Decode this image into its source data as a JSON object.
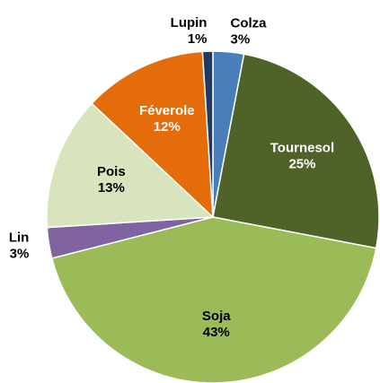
{
  "chart_data": {
    "type": "pie",
    "categories": [
      "Colza",
      "Tournesol",
      "Soja",
      "Lin",
      "Pois",
      "Féverole",
      "Lupin"
    ],
    "values": [
      3,
      25,
      43,
      3,
      13,
      12,
      1
    ],
    "value_labels": [
      "3%",
      "25%",
      "43%",
      "3%",
      "13%",
      "12%",
      "1%"
    ],
    "colors": [
      "#4a7ebb",
      "#4f6228",
      "#9bbb59",
      "#8064a2",
      "#d7e4bd",
      "#e46c0a",
      "#1f3864"
    ]
  }
}
